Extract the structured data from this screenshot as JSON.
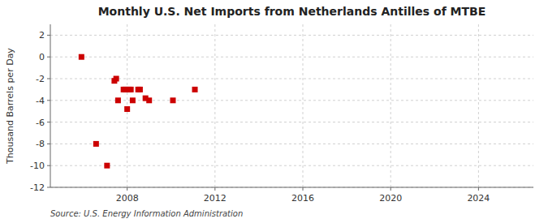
{
  "chart_data": {
    "type": "scatter",
    "title": "Monthly U.S. Net Imports from Netherlands Antilles of MTBE",
    "ylabel": "Thousand Barrels per Day",
    "annotations": [
      "Source: U.S. Energy Information Administration"
    ],
    "x": [
      2005.917,
      2006.583,
      2007.083,
      2007.417,
      2007.5,
      2007.583,
      2007.833,
      2007.917,
      2008.0,
      2008.083,
      2008.167,
      2008.25,
      2008.5,
      2008.583,
      2008.833,
      2009.0,
      2010.083,
      2011.083
    ],
    "values": [
      0,
      -8,
      -10,
      -2.2,
      -2.0,
      -4.0,
      -3.0,
      -3.0,
      -4.8,
      -3.0,
      -3.0,
      -4.0,
      -3.0,
      -3.0,
      -3.8,
      -4.0,
      -4.0,
      -3.0
    ],
    "color": "#cc0000",
    "marker": "square",
    "xlim": [
      2004.5,
      2026.5
    ],
    "ylim": [
      -12,
      3
    ],
    "xticks": [
      2008,
      2012,
      2016,
      2020,
      2024
    ],
    "yticks": [
      2,
      0,
      -2,
      -4,
      -6,
      -8,
      -10,
      -12
    ],
    "grid": true
  }
}
